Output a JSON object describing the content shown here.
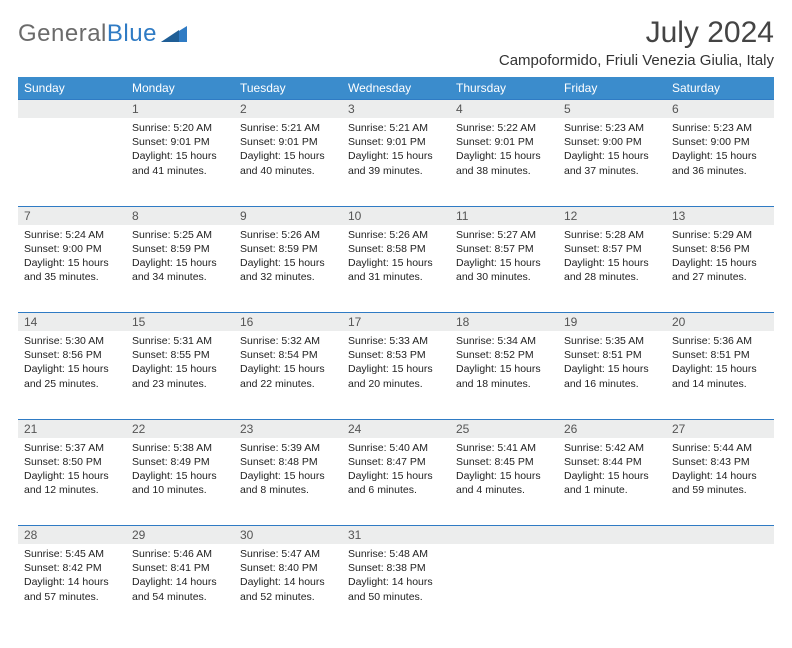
{
  "brand": {
    "part1": "General",
    "part2": "Blue"
  },
  "title": "July 2024",
  "location": "Campoformido, Friuli Venezia Giulia, Italy",
  "colors": {
    "header_bg": "#3b8ccc",
    "header_text": "#ffffff",
    "rule": "#2f7bc4",
    "daynum_bg": "#eceded",
    "logo_gray": "#6b6b6b",
    "logo_blue": "#2f7bc4"
  },
  "weekdays": [
    "Sunday",
    "Monday",
    "Tuesday",
    "Wednesday",
    "Thursday",
    "Friday",
    "Saturday"
  ],
  "weeks": [
    [
      {
        "n": "",
        "sr": "",
        "ss": "",
        "dl": ""
      },
      {
        "n": "1",
        "sr": "5:20 AM",
        "ss": "9:01 PM",
        "dl": "15 hours and 41 minutes."
      },
      {
        "n": "2",
        "sr": "5:21 AM",
        "ss": "9:01 PM",
        "dl": "15 hours and 40 minutes."
      },
      {
        "n": "3",
        "sr": "5:21 AM",
        "ss": "9:01 PM",
        "dl": "15 hours and 39 minutes."
      },
      {
        "n": "4",
        "sr": "5:22 AM",
        "ss": "9:01 PM",
        "dl": "15 hours and 38 minutes."
      },
      {
        "n": "5",
        "sr": "5:23 AM",
        "ss": "9:00 PM",
        "dl": "15 hours and 37 minutes."
      },
      {
        "n": "6",
        "sr": "5:23 AM",
        "ss": "9:00 PM",
        "dl": "15 hours and 36 minutes."
      }
    ],
    [
      {
        "n": "7",
        "sr": "5:24 AM",
        "ss": "9:00 PM",
        "dl": "15 hours and 35 minutes."
      },
      {
        "n": "8",
        "sr": "5:25 AM",
        "ss": "8:59 PM",
        "dl": "15 hours and 34 minutes."
      },
      {
        "n": "9",
        "sr": "5:26 AM",
        "ss": "8:59 PM",
        "dl": "15 hours and 32 minutes."
      },
      {
        "n": "10",
        "sr": "5:26 AM",
        "ss": "8:58 PM",
        "dl": "15 hours and 31 minutes."
      },
      {
        "n": "11",
        "sr": "5:27 AM",
        "ss": "8:57 PM",
        "dl": "15 hours and 30 minutes."
      },
      {
        "n": "12",
        "sr": "5:28 AM",
        "ss": "8:57 PM",
        "dl": "15 hours and 28 minutes."
      },
      {
        "n": "13",
        "sr": "5:29 AM",
        "ss": "8:56 PM",
        "dl": "15 hours and 27 minutes."
      }
    ],
    [
      {
        "n": "14",
        "sr": "5:30 AM",
        "ss": "8:56 PM",
        "dl": "15 hours and 25 minutes."
      },
      {
        "n": "15",
        "sr": "5:31 AM",
        "ss": "8:55 PM",
        "dl": "15 hours and 23 minutes."
      },
      {
        "n": "16",
        "sr": "5:32 AM",
        "ss": "8:54 PM",
        "dl": "15 hours and 22 minutes."
      },
      {
        "n": "17",
        "sr": "5:33 AM",
        "ss": "8:53 PM",
        "dl": "15 hours and 20 minutes."
      },
      {
        "n": "18",
        "sr": "5:34 AM",
        "ss": "8:52 PM",
        "dl": "15 hours and 18 minutes."
      },
      {
        "n": "19",
        "sr": "5:35 AM",
        "ss": "8:51 PM",
        "dl": "15 hours and 16 minutes."
      },
      {
        "n": "20",
        "sr": "5:36 AM",
        "ss": "8:51 PM",
        "dl": "15 hours and 14 minutes."
      }
    ],
    [
      {
        "n": "21",
        "sr": "5:37 AM",
        "ss": "8:50 PM",
        "dl": "15 hours and 12 minutes."
      },
      {
        "n": "22",
        "sr": "5:38 AM",
        "ss": "8:49 PM",
        "dl": "15 hours and 10 minutes."
      },
      {
        "n": "23",
        "sr": "5:39 AM",
        "ss": "8:48 PM",
        "dl": "15 hours and 8 minutes."
      },
      {
        "n": "24",
        "sr": "5:40 AM",
        "ss": "8:47 PM",
        "dl": "15 hours and 6 minutes."
      },
      {
        "n": "25",
        "sr": "5:41 AM",
        "ss": "8:45 PM",
        "dl": "15 hours and 4 minutes."
      },
      {
        "n": "26",
        "sr": "5:42 AM",
        "ss": "8:44 PM",
        "dl": "15 hours and 1 minute."
      },
      {
        "n": "27",
        "sr": "5:44 AM",
        "ss": "8:43 PM",
        "dl": "14 hours and 59 minutes."
      }
    ],
    [
      {
        "n": "28",
        "sr": "5:45 AM",
        "ss": "8:42 PM",
        "dl": "14 hours and 57 minutes."
      },
      {
        "n": "29",
        "sr": "5:46 AM",
        "ss": "8:41 PM",
        "dl": "14 hours and 54 minutes."
      },
      {
        "n": "30",
        "sr": "5:47 AM",
        "ss": "8:40 PM",
        "dl": "14 hours and 52 minutes."
      },
      {
        "n": "31",
        "sr": "5:48 AM",
        "ss": "8:38 PM",
        "dl": "14 hours and 50 minutes."
      },
      {
        "n": "",
        "sr": "",
        "ss": "",
        "dl": ""
      },
      {
        "n": "",
        "sr": "",
        "ss": "",
        "dl": ""
      },
      {
        "n": "",
        "sr": "",
        "ss": "",
        "dl": ""
      }
    ]
  ],
  "labels": {
    "sunrise": "Sunrise: ",
    "sunset": "Sunset: ",
    "daylight": "Daylight: "
  }
}
